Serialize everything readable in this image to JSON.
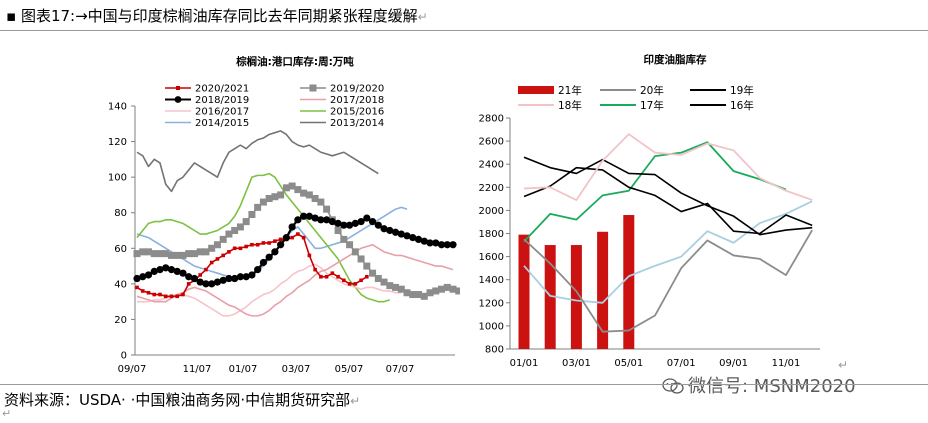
{
  "figure": {
    "title": "图表17:→中国与印度棕榈油库存同比去年同期紧张程度缓解",
    "source": "资料来源：USDA· ·中国粮油商务网·中信期货研究部",
    "watermark": "微信号: MSNM2020"
  },
  "chart_data": [
    {
      "type": "line",
      "title": "棕榈油:港口库存:周:万吨",
      "x_ticks": [
        "09/07",
        "11/07",
        "01/07",
        "03/07",
        "05/07",
        "07/07"
      ],
      "ylim": [
        0,
        140
      ],
      "y_ticks": [
        0,
        20,
        40,
        60,
        80,
        100,
        120,
        140
      ],
      "grid": false,
      "legend_position": "top",
      "series": [
        {
          "name": "2020/2021",
          "color": "#cc0000",
          "marker": "small-square",
          "values": [
            38,
            36,
            35,
            34,
            34,
            33,
            33,
            33,
            34,
            40,
            42,
            45,
            48,
            52,
            54,
            56,
            58,
            60,
            60,
            61,
            62,
            62,
            63,
            63,
            64,
            65,
            65,
            66,
            68,
            66,
            56,
            48,
            44,
            44,
            46,
            44,
            42,
            40,
            40,
            42,
            44
          ]
        },
        {
          "name": "2019/2020",
          "color": "#8c8c8c",
          "marker": "square",
          "values": [
            57,
            58,
            58,
            57,
            57,
            57,
            56,
            56,
            56,
            57,
            57,
            58,
            58,
            60,
            62,
            65,
            68,
            70,
            72,
            75,
            79,
            83,
            86,
            88,
            89,
            90,
            94,
            95,
            93,
            91,
            90,
            88,
            86,
            82,
            76,
            70,
            65,
            62,
            58,
            54,
            50,
            46,
            43,
            41,
            39,
            38,
            37,
            35,
            34,
            34,
            33,
            35,
            36,
            37,
            38,
            37,
            36
          ]
        },
        {
          "name": "2018/2019",
          "color": "#000000",
          "marker": "circle",
          "values": [
            43,
            44,
            45,
            47,
            48,
            49,
            48,
            47,
            46,
            44,
            43,
            41,
            40,
            40,
            41,
            42,
            43,
            43,
            44,
            44,
            45,
            48,
            52,
            55,
            58,
            62,
            66,
            72,
            76,
            78,
            78,
            77,
            76,
            76,
            75,
            74,
            73,
            73,
            74,
            75,
            77,
            75,
            73,
            71,
            70,
            69,
            68,
            67,
            66,
            65,
            64,
            63,
            63,
            62,
            62,
            62
          ]
        },
        {
          "name": "2017/2018",
          "color": "#e8a0a8",
          "marker": "none",
          "values": [
            33,
            32,
            31,
            30,
            30,
            30,
            32,
            34,
            35,
            37,
            38,
            37,
            36,
            34,
            32,
            30,
            28,
            27,
            25,
            23,
            22,
            22,
            23,
            25,
            28,
            30,
            33,
            35,
            38,
            40,
            42,
            45,
            47,
            48,
            50,
            52,
            54,
            56,
            58,
            60,
            61,
            62,
            60,
            58,
            57,
            56,
            56,
            55,
            54,
            53,
            52,
            51,
            50,
            50,
            49,
            48
          ]
        },
        {
          "name": "2016/2017",
          "color": "#f5c4c8",
          "marker": "none",
          "values": [
            30,
            30,
            30,
            31,
            31,
            32,
            33,
            34,
            34,
            33,
            32,
            30,
            28,
            26,
            24,
            22,
            22,
            23,
            25,
            27,
            30,
            32,
            34,
            35,
            37,
            40,
            42,
            45,
            47,
            48,
            50,
            51,
            49,
            46,
            44,
            42,
            40,
            39,
            38,
            37,
            38,
            38,
            37,
            36,
            36,
            35,
            35
          ]
        },
        {
          "name": "2015/2016",
          "color": "#7cc142",
          "marker": "none",
          "values": [
            66,
            70,
            74,
            75,
            75,
            76,
            76,
            75,
            74,
            72,
            70,
            68,
            68,
            69,
            70,
            72,
            74,
            78,
            84,
            92,
            100,
            101,
            101,
            102,
            100,
            95,
            90,
            86,
            82,
            78,
            74,
            70,
            66,
            62,
            58,
            54,
            48,
            42,
            38,
            34,
            32,
            31,
            30,
            30,
            31
          ]
        },
        {
          "name": "2014/2015",
          "color": "#8ab0e0",
          "marker": "none",
          "values": [
            68,
            67,
            66,
            64,
            62,
            60,
            58,
            56,
            54,
            52,
            50,
            49,
            48,
            47,
            46,
            45,
            44,
            43,
            43,
            44,
            45,
            47,
            50,
            54,
            58,
            62,
            66,
            70,
            72,
            68,
            64,
            60,
            60,
            61,
            62,
            63,
            64,
            66,
            68,
            70,
            72,
            74,
            76,
            78,
            80,
            82,
            83,
            82
          ]
        },
        {
          "name": "2013/2014",
          "color": "#737373",
          "marker": "none",
          "values": [
            114,
            112,
            106,
            110,
            108,
            96,
            92,
            98,
            100,
            104,
            108,
            106,
            104,
            102,
            100,
            108,
            114,
            116,
            118,
            116,
            119,
            121,
            122,
            124,
            125,
            126,
            124,
            120,
            118,
            117,
            118,
            116,
            114,
            113,
            112,
            113,
            114,
            112,
            110,
            108,
            106,
            104,
            102
          ]
        }
      ]
    },
    {
      "type": "bar+line",
      "title": "印度油脂库存",
      "x_ticks": [
        "01/01",
        "03/01",
        "05/01",
        "07/01",
        "09/01",
        "11/01"
      ],
      "ylim": [
        800,
        2800
      ],
      "y_ticks": [
        800,
        1000,
        1200,
        1400,
        1600,
        1800,
        2000,
        2200,
        2400,
        2600,
        2800
      ],
      "grid": false,
      "legend_position": "top",
      "bars": {
        "name": "21年",
        "color": "#cc1111",
        "months": [
          1,
          2,
          3,
          4,
          5
        ],
        "values": [
          1790,
          1700,
          1700,
          1815,
          1960
        ]
      },
      "series": [
        {
          "name": "20年",
          "color": "#8c8c8c",
          "values": [
            1750,
            1540,
            1300,
            950,
            960,
            1090,
            1500,
            1740,
            1610,
            1580,
            1440,
            1830
          ]
        },
        {
          "name": "19年",
          "color": "#000000",
          "values": [
            2120,
            2210,
            2370,
            2350,
            2200,
            2130,
            1990,
            2060,
            1820,
            1800,
            1960,
            1870
          ]
        },
        {
          "name": "18年",
          "color": "#f2c4c8",
          "values": [
            2190,
            2200,
            2090,
            2430,
            2660,
            2500,
            2480,
            2580,
            2520,
            2280,
            2170,
            2090
          ]
        },
        {
          "name": "17年",
          "color": "#1aab5a",
          "values": [
            1730,
            1970,
            1920,
            2130,
            2170,
            2470,
            2500,
            2590,
            2340,
            2270,
            2180
          ]
        },
        {
          "name": "16年",
          "color": "#000000",
          "values": [
            2460,
            2370,
            2320,
            2440,
            2320,
            2310,
            2150,
            2040,
            1950,
            1790,
            1830,
            1850
          ]
        },
        {
          "name": "",
          "color": "#a8d0e0",
          "values": [
            1520,
            1260,
            1220,
            1200,
            1430,
            1520,
            1600,
            1820,
            1720,
            1890,
            1970,
            2080
          ]
        }
      ]
    }
  ]
}
